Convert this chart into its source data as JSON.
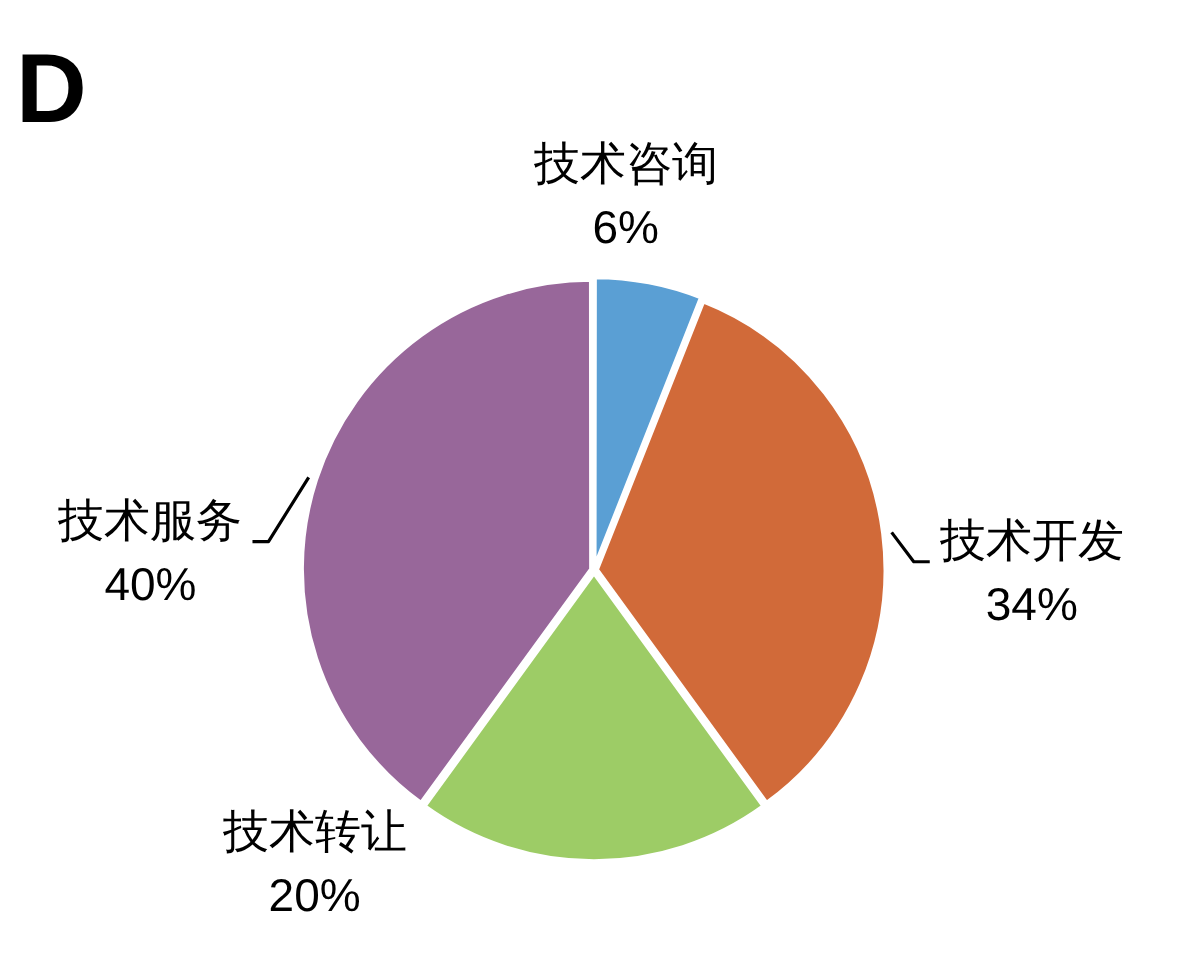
{
  "chart_data": {
    "type": "pie",
    "title": "D",
    "categories": [
      "技术咨询",
      "技术开发",
      "技术转让",
      "技术服务"
    ],
    "values": [
      6,
      34,
      20,
      40
    ],
    "colors": [
      "#5a9fd4",
      "#d16a39",
      "#9dcc66",
      "#98679a"
    ],
    "value_labels": [
      "6%",
      "34%",
      "20%",
      "40%"
    ],
    "legend": false
  }
}
